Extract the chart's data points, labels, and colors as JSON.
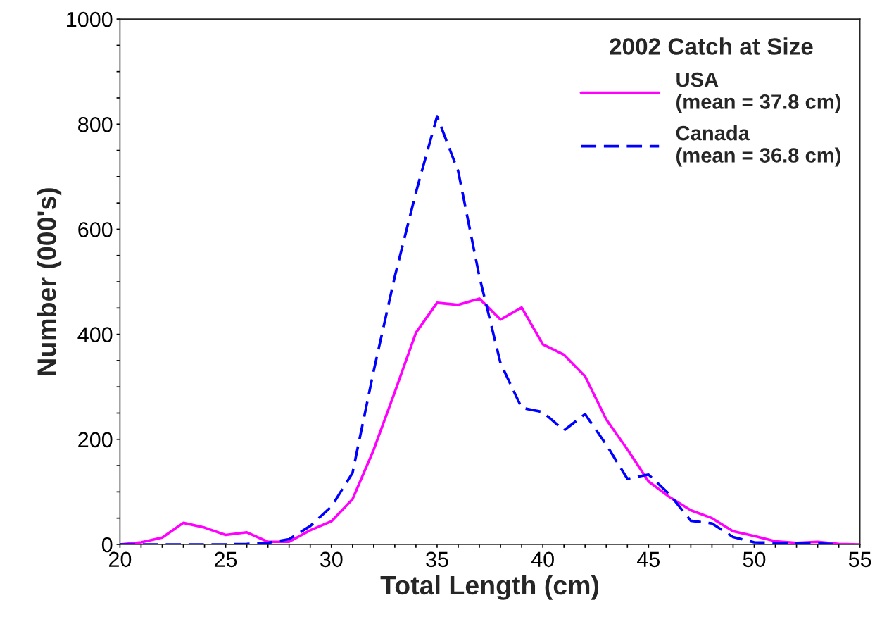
{
  "chart_data": {
    "type": "line",
    "xlabel": "Total Length (cm)",
    "ylabel": "Number (000's)",
    "legend_title": "2002 Catch at Size",
    "legend": "top right",
    "grid": false,
    "marker": "none",
    "x": [
      20,
      21,
      22,
      23,
      24,
      25,
      26,
      27,
      28,
      29,
      30,
      31,
      32,
      33,
      34,
      35,
      36,
      37,
      38,
      39,
      40,
      41,
      42,
      43,
      44,
      45,
      46,
      47,
      48,
      49,
      50,
      51,
      52,
      53,
      54,
      55
    ],
    "series": [
      {
        "name": "USA\n(mean = 37.8 cm)",
        "color": "#ff00ff",
        "line_style": "solid",
        "values": [
          0,
          4,
          13,
          41,
          32,
          18,
          23,
          5,
          5,
          27,
          44,
          86,
          180,
          290,
          403,
          460,
          456,
          468,
          428,
          451,
          381,
          361,
          320,
          238,
          181,
          120,
          90,
          65,
          50,
          25,
          16,
          6,
          3,
          5,
          1,
          0
        ]
      },
      {
        "name": "Canada\n(mean = 36.8 cm)",
        "color": "#0000ff",
        "line_style": "dashed",
        "values": [
          0,
          0,
          0,
          0,
          0,
          0,
          1,
          3,
          10,
          35,
          72,
          136,
          330,
          510,
          670,
          815,
          710,
          510,
          345,
          260,
          252,
          217,
          248,
          190,
          125,
          133,
          95,
          45,
          40,
          14,
          4,
          3,
          3,
          2,
          0,
          null
        ]
      }
    ],
    "xlim": [
      20,
      55
    ],
    "ylim": [
      0,
      1000
    ],
    "xticks": [
      20,
      {
        "value": 21,
        "label": null
      },
      {
        "value": 22,
        "label": null
      },
      {
        "value": 23,
        "label": null
      },
      {
        "value": 24,
        "label": null
      },
      25,
      {
        "value": 26,
        "label": null
      },
      {
        "value": 27,
        "label": null
      },
      {
        "value": 28,
        "label": null
      },
      {
        "value": 29,
        "label": null
      },
      30,
      {
        "value": 31,
        "label": null
      },
      {
        "value": 32,
        "label": null
      },
      {
        "value": 33,
        "label": null
      },
      {
        "value": 34,
        "label": null
      },
      35,
      {
        "value": 36,
        "label": null
      },
      {
        "value": 37,
        "label": null
      },
      {
        "value": 38,
        "label": null
      },
      {
        "value": 39,
        "label": null
      },
      40,
      {
        "value": 41,
        "label": null
      },
      {
        "value": 42,
        "label": null
      },
      {
        "value": 43,
        "label": null
      },
      {
        "value": 44,
        "label": null
      },
      45,
      {
        "value": 46,
        "label": null
      },
      {
        "value": 47,
        "label": null
      },
      {
        "value": 48,
        "label": null
      },
      {
        "value": 49,
        "label": null
      },
      50,
      {
        "value": 51,
        "label": null
      },
      {
        "value": 52,
        "label": null
      },
      {
        "value": 53,
        "label": null
      },
      {
        "value": 54,
        "label": null
      },
      55
    ],
    "yticks": [
      0,
      {
        "value": 50,
        "label": null
      },
      {
        "value": 100,
        "label": null
      },
      {
        "value": 150,
        "label": null
      },
      200,
      {
        "value": 250,
        "label": null
      },
      {
        "value": 300,
        "label": null
      },
      {
        "value": 350,
        "label": null
      },
      400,
      {
        "value": 450,
        "label": null
      },
      {
        "value": 500,
        "label": null
      },
      {
        "value": 550,
        "label": null
      },
      600,
      {
        "value": 650,
        "label": null
      },
      {
        "value": 700,
        "label": null
      },
      {
        "value": 750,
        "label": null
      },
      800,
      {
        "value": 850,
        "label": null
      },
      {
        "value": 900,
        "label": null
      },
      {
        "value": 950,
        "label": null
      },
      1000
    ]
  }
}
